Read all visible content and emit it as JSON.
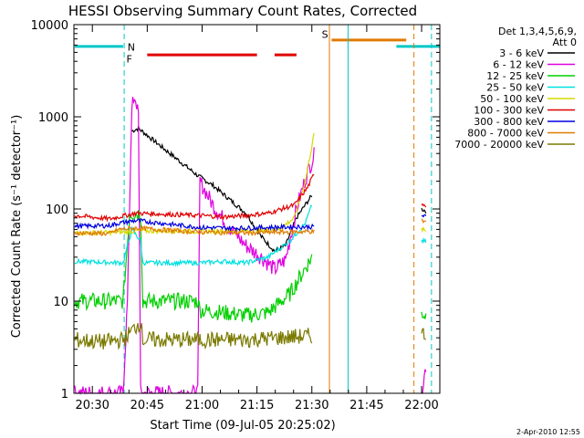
{
  "chart_data": {
    "type": "line",
    "title": "HESSI Observing Summary Count Rates, Corrected",
    "xlabel": "Start Time (09-Jul-05 20:25:02)",
    "ylabel": "Corrected Count Rate (s⁻¹ detector⁻¹)",
    "yscale": "log",
    "ylim": [
      1,
      10000
    ],
    "xlim_minutes": [
      20.416,
      22.083
    ],
    "x_ticks": [
      "20:30",
      "20:45",
      "21:00",
      "21:15",
      "21:30",
      "21:45",
      "22:00"
    ],
    "y_ticks": [
      "1",
      "10",
      "100",
      "1000",
      "10000"
    ],
    "legend_header": [
      "Det 1,3,4,5,6,9,",
      "Att 0"
    ],
    "timestamp": "2-Apr-2010 12:55",
    "flags": [
      {
        "label": "N",
        "color": "#00c8c8"
      },
      {
        "label": "F",
        "color": "#e00000"
      },
      {
        "label": "S",
        "color": "#e07a00"
      }
    ],
    "series": [
      {
        "name": "3 - 6 keV",
        "color": "#000000",
        "points": [
          [
            20.68,
            700
          ],
          [
            20.71,
            750
          ],
          [
            20.98,
            230
          ],
          [
            21.05,
            180
          ],
          [
            21.12,
            130
          ],
          [
            21.2,
            90
          ],
          [
            21.27,
            50
          ],
          [
            21.33,
            35
          ],
          [
            21.38,
            40
          ],
          [
            21.43,
            80
          ],
          [
            21.48,
            120
          ],
          [
            21.5,
            140
          ]
        ],
        "tail": [
          [
            22.0,
            100
          ],
          [
            22.02,
            95
          ]
        ]
      },
      {
        "name": "6 - 12 keV",
        "color": "#e000e0",
        "points": [
          [
            20.42,
            1
          ],
          [
            20.64,
            1
          ],
          [
            20.66,
            10
          ],
          [
            20.68,
            1400
          ],
          [
            20.71,
            1300
          ],
          [
            20.72,
            1
          ],
          [
            20.98,
            1
          ],
          [
            20.99,
            200
          ],
          [
            21.05,
            110
          ],
          [
            21.12,
            65
          ],
          [
            21.2,
            40
          ],
          [
            21.27,
            30
          ],
          [
            21.33,
            22
          ],
          [
            21.38,
            28
          ],
          [
            21.43,
            100
          ],
          [
            21.48,
            250
          ],
          [
            21.51,
            380
          ]
        ],
        "tail": [
          [
            22.0,
            1
          ],
          [
            22.02,
            2
          ]
        ]
      },
      {
        "name": "12 - 25 keV",
        "color": "#00d000",
        "points": [
          [
            20.42,
            10
          ],
          [
            20.64,
            10
          ],
          [
            20.67,
            90
          ],
          [
            20.72,
            90
          ],
          [
            20.73,
            10
          ],
          [
            20.98,
            10
          ],
          [
            20.99,
            8
          ],
          [
            21.1,
            7.5
          ],
          [
            21.2,
            7
          ],
          [
            21.3,
            7.5
          ],
          [
            21.4,
            12
          ],
          [
            21.48,
            25
          ],
          [
            21.5,
            30
          ]
        ],
        "tail": [
          [
            22.0,
            7.5
          ],
          [
            22.02,
            7
          ]
        ]
      },
      {
        "name": "25 - 50 keV",
        "color": "#00e0e0",
        "points": [
          [
            20.42,
            27
          ],
          [
            20.64,
            26
          ],
          [
            20.65,
            32
          ],
          [
            20.68,
            60
          ],
          [
            20.72,
            45
          ],
          [
            20.73,
            26
          ],
          [
            20.98,
            26
          ],
          [
            20.99,
            26
          ],
          [
            21.1,
            27
          ],
          [
            21.2,
            26
          ],
          [
            21.3,
            30
          ],
          [
            21.4,
            45
          ],
          [
            21.47,
            70
          ],
          [
            21.5,
            110
          ]
        ],
        "tail": [
          [
            22.0,
            45
          ],
          [
            22.02,
            44
          ]
        ]
      },
      {
        "name": "50 - 100 keV",
        "color": "#d8d800",
        "points": [
          [
            20.42,
            55
          ],
          [
            20.64,
            56
          ],
          [
            20.7,
            58
          ],
          [
            20.99,
            57
          ],
          [
            21.2,
            58
          ],
          [
            21.35,
            60
          ],
          [
            21.42,
            80
          ],
          [
            21.47,
            200
          ],
          [
            21.51,
            650
          ]
        ],
        "tail": [
          [
            22.0,
            60
          ],
          [
            22.02,
            58
          ]
        ]
      },
      {
        "name": "100 - 300 keV",
        "color": "#e00000",
        "points": [
          [
            20.42,
            85
          ],
          [
            20.58,
            78
          ],
          [
            20.62,
            82
          ],
          [
            20.7,
            90
          ],
          [
            20.99,
            85
          ],
          [
            21.1,
            82
          ],
          [
            21.2,
            85
          ],
          [
            21.3,
            90
          ],
          [
            21.42,
            110
          ],
          [
            21.48,
            170
          ],
          [
            21.51,
            240
          ]
        ],
        "tail": [
          [
            22.0,
            115
          ],
          [
            22.02,
            110
          ]
        ]
      },
      {
        "name": "300 - 800 keV",
        "color": "#0000e0",
        "points": [
          [
            20.42,
            65
          ],
          [
            20.58,
            66
          ],
          [
            20.62,
            70
          ],
          [
            20.7,
            75
          ],
          [
            20.99,
            63
          ],
          [
            21.1,
            62
          ],
          [
            21.2,
            62
          ],
          [
            21.3,
            63
          ],
          [
            21.42,
            64
          ],
          [
            21.51,
            64
          ]
        ],
        "tail": [
          [
            22.0,
            85
          ],
          [
            22.02,
            82
          ]
        ]
      },
      {
        "name": "800 - 7000 keV",
        "color": "#e07a00",
        "points": [
          [
            20.42,
            55
          ],
          [
            20.58,
            54
          ],
          [
            20.62,
            60
          ],
          [
            20.7,
            62
          ],
          [
            20.99,
            56
          ],
          [
            21.2,
            55
          ],
          [
            21.35,
            56
          ],
          [
            21.51,
            57
          ]
        ],
        "tail": [
          [
            22.0,
            75
          ],
          [
            22.02,
            72
          ]
        ]
      },
      {
        "name": "7000 - 20000 keV",
        "color": "#7a7a00",
        "points": [
          [
            20.42,
            3.8
          ],
          [
            20.55,
            3.6
          ],
          [
            20.64,
            3.8
          ],
          [
            20.72,
            6
          ],
          [
            20.73,
            3.8
          ],
          [
            20.98,
            3.8
          ],
          [
            20.99,
            3.8
          ],
          [
            21.2,
            3.8
          ],
          [
            21.35,
            4
          ],
          [
            21.5,
            4.2
          ]
        ],
        "tail": [
          [
            22.0,
            4.5
          ],
          [
            22.02,
            4.2
          ]
        ]
      }
    ]
  }
}
